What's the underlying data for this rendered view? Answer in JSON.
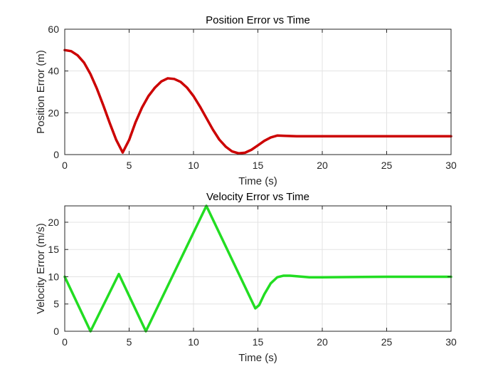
{
  "chart_data": [
    {
      "type": "line",
      "title": "Position Error vs Time",
      "xlabel": "Time (s)",
      "ylabel": "Position Error (m)",
      "xlim": [
        0,
        30
      ],
      "ylim": [
        0,
        60
      ],
      "xticks": [
        0,
        5,
        10,
        15,
        20,
        25,
        30
      ],
      "yticks": [
        0,
        20,
        40,
        60
      ],
      "grid": true,
      "series": [
        {
          "color": "#cc0000",
          "x": [
            0,
            0.5,
            1,
            1.5,
            2,
            2.5,
            3,
            3.5,
            4,
            4.5,
            5,
            5.5,
            6,
            6.5,
            7,
            7.5,
            8,
            8.5,
            9,
            9.5,
            10,
            10.5,
            11,
            11.5,
            12,
            12.5,
            13,
            13.5,
            14,
            14.5,
            15,
            15.5,
            16,
            16.5,
            17,
            18,
            20,
            25,
            30
          ],
          "values": [
            50,
            49.5,
            47.5,
            44,
            38.5,
            31.5,
            23.5,
            15,
            7,
            1,
            7,
            15.5,
            22.5,
            28,
            32,
            35,
            36.5,
            36.2,
            34.8,
            32,
            28,
            23,
            17.5,
            12,
            7.2,
            3.8,
            1.5,
            0.6,
            0.9,
            2.3,
            4.4,
            6.6,
            8.2,
            9.1,
            9,
            8.8,
            8.8,
            8.8,
            8.8
          ]
        }
      ]
    },
    {
      "type": "line",
      "title": "Velocity Error vs Time",
      "xlabel": "Time (s)",
      "ylabel": "Velocity Error (m/s)",
      "xlim": [
        0,
        30
      ],
      "ylim": [
        0,
        23
      ],
      "xticks": [
        0,
        5,
        10,
        15,
        20,
        25,
        30
      ],
      "yticks": [
        0,
        5,
        10,
        15,
        20
      ],
      "grid": true,
      "series": [
        {
          "color": "#22dd22",
          "x": [
            0,
            2,
            4.2,
            6.3,
            11,
            14.8,
            15.1,
            15.5,
            16,
            16.5,
            17,
            17.5,
            18,
            19,
            20,
            25,
            30
          ],
          "values": [
            10,
            0,
            10.5,
            0,
            23,
            4.2,
            4.8,
            6.8,
            8.8,
            9.9,
            10.2,
            10.2,
            10.1,
            9.9,
            9.9,
            10,
            10
          ]
        }
      ]
    }
  ]
}
